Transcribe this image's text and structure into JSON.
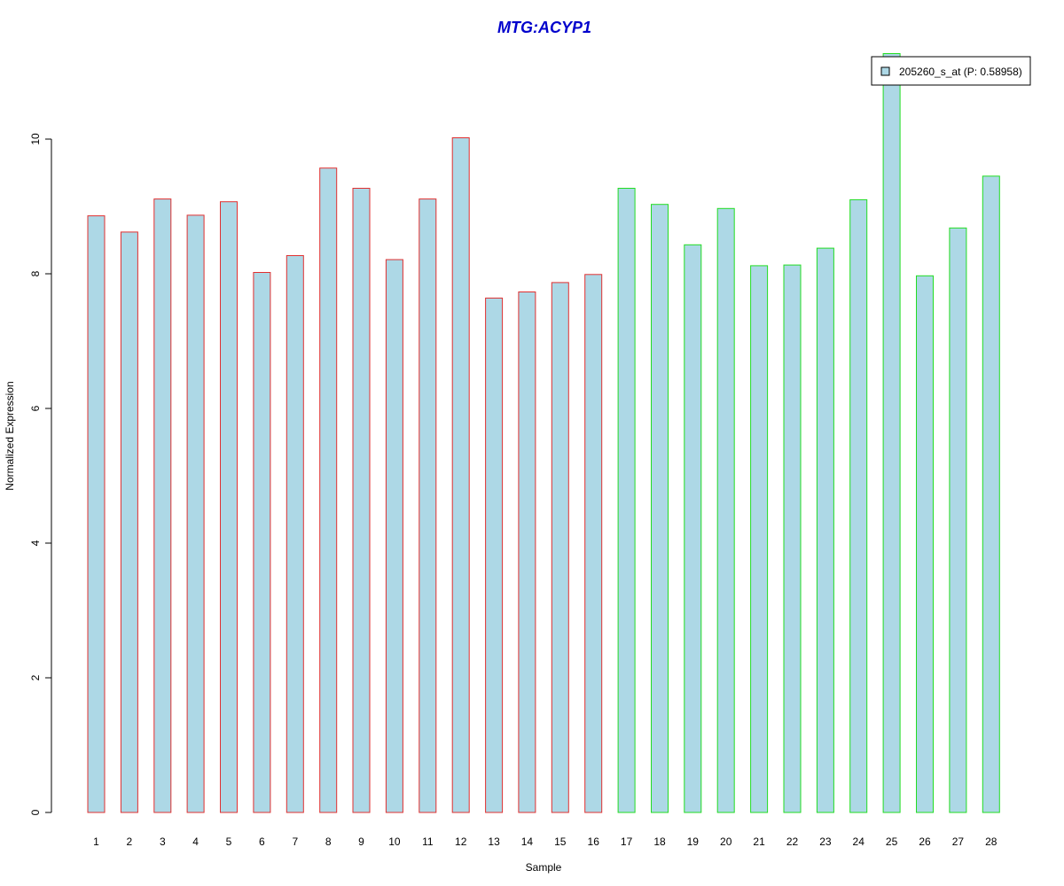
{
  "chart_data": {
    "type": "bar",
    "title": "MTG:ACYP1",
    "xlabel": "Sample",
    "ylabel": "Normalized Expression",
    "ylim": [
      0,
      11.3
    ],
    "yticks": [
      0,
      2,
      4,
      6,
      8,
      10
    ],
    "categories": [
      "1",
      "2",
      "3",
      "4",
      "5",
      "6",
      "7",
      "8",
      "9",
      "10",
      "11",
      "12",
      "13",
      "14",
      "15",
      "16",
      "17",
      "18",
      "19",
      "20",
      "21",
      "22",
      "23",
      "24",
      "25",
      "26",
      "27",
      "28"
    ],
    "series": [
      {
        "name": "205260_s_at (P: 0.58958)",
        "values": [
          8.86,
          8.62,
          9.11,
          8.87,
          9.07,
          8.02,
          8.27,
          9.57,
          9.27,
          8.21,
          9.11,
          10.02,
          7.64,
          7.73,
          7.87,
          7.99,
          9.27,
          9.03,
          8.43,
          8.97,
          8.12,
          8.13,
          8.38,
          9.1,
          11.27,
          7.97,
          8.68,
          9.45
        ]
      }
    ],
    "groups": [
      {
        "start": 0,
        "end": 15,
        "border_color": "#e03030"
      },
      {
        "start": 16,
        "end": 27,
        "border_color": "#22dd22"
      }
    ],
    "bar_fill": "#add8e6",
    "title_color": "#0000cc",
    "grid": false,
    "legend_position": "top-right"
  }
}
